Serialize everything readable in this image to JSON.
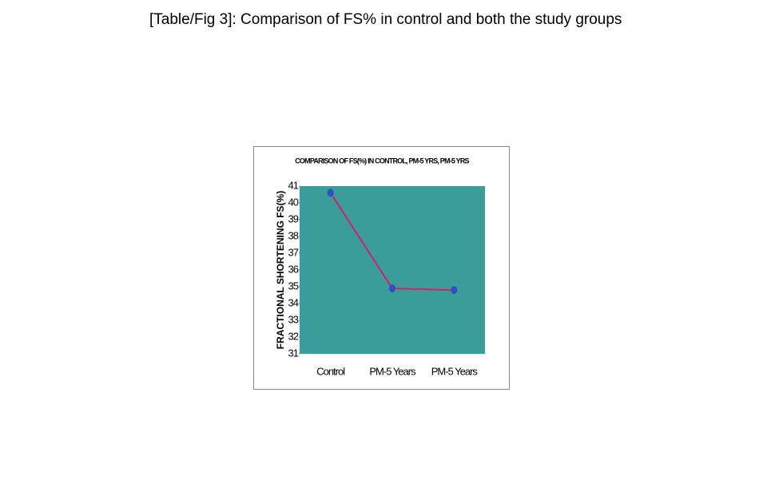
{
  "caption": "[Table/Fig 3]: Comparison of FS% in control and both the study groups",
  "chart_data": {
    "type": "line",
    "title": "COMPARISON OF FS(%) IN CONTROL, PM-5 YRS, PM-5 YRS",
    "y_label": "FRACTIONAL SHORTENING FS(%)",
    "categories": [
      "Control",
      "PM-5 Years",
      "PM-5 Years"
    ],
    "values": [
      40.6,
      34.9,
      34.8
    ],
    "color": "#d4206e",
    "marker_color": "#2f4fc4",
    "background": "#3b9d99",
    "ylim": [
      31,
      41
    ],
    "yticks": [
      31,
      32,
      33,
      34,
      35,
      36,
      37,
      38,
      39,
      40,
      41
    ]
  }
}
